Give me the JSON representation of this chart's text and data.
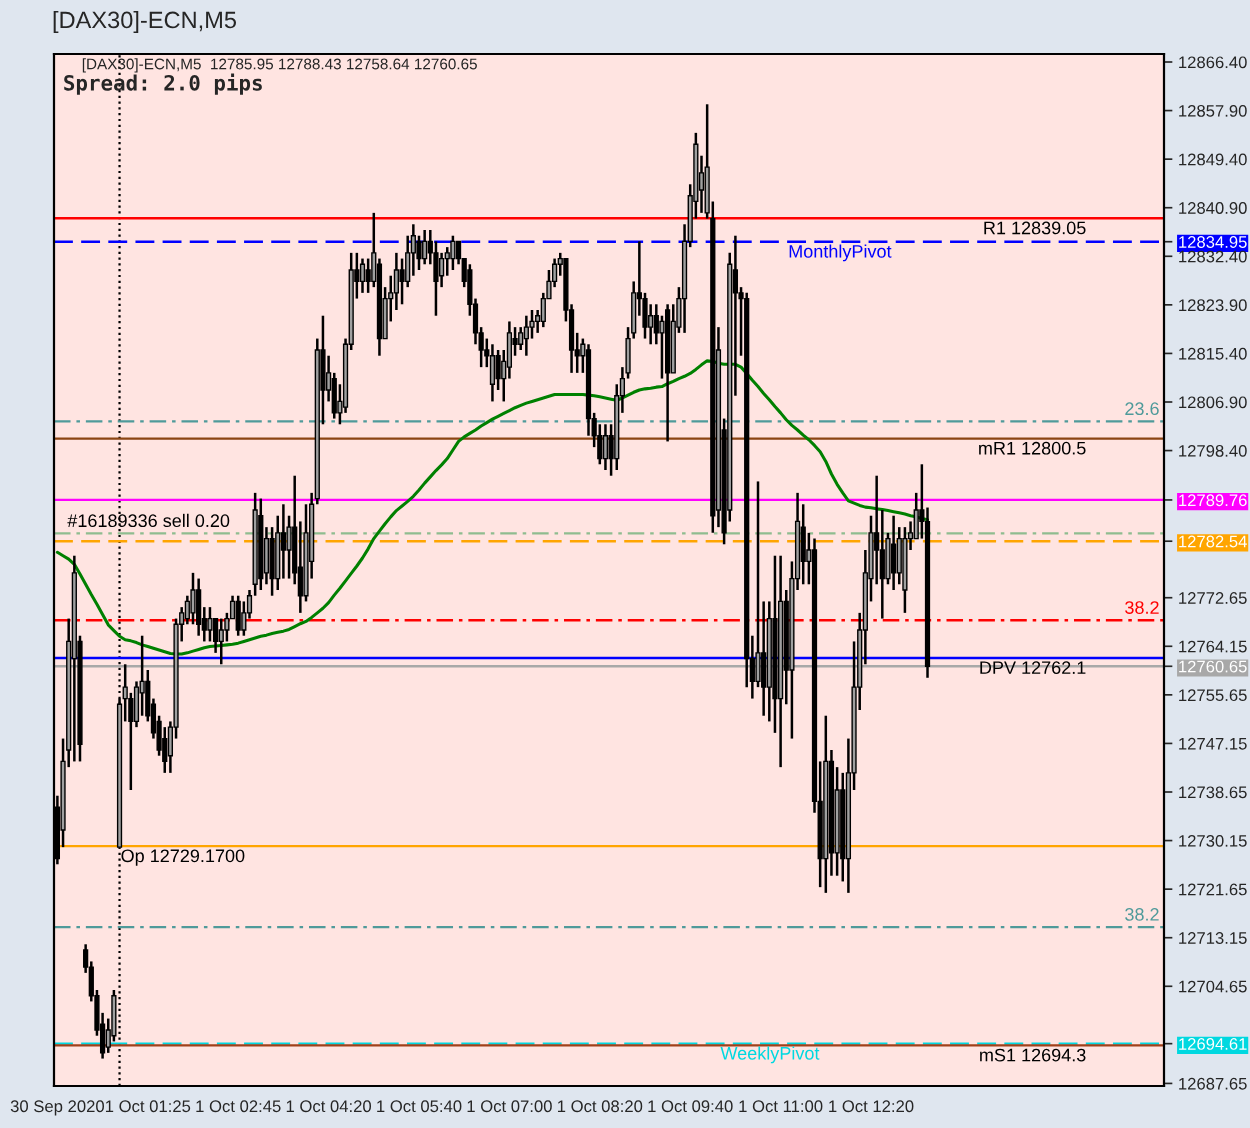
{
  "chart_data": {
    "type": "candlestick",
    "title": "[DAX30]-ECN,M5",
    "subtitle": "[DAX30]-ECN,M5  12785.95 12788.43 12758.64 12760.65",
    "annotations": [
      "Spread: 2.0 pips",
      {
        "text": "23.6",
        "y": 12803.5
      },
      {
        "text": "38.2",
        "y": 12768.7
      },
      {
        "text": "38.2",
        "y": 12715.0
      }
    ],
    "categories": [
      "30 Sep 2020",
      null,
      null,
      null,
      null,
      null,
      null,
      null,
      null,
      null,
      null,
      null,
      null,
      null,
      null,
      null,
      "1 Oct 01:25",
      null,
      null,
      null,
      null,
      null,
      null,
      null,
      null,
      null,
      null,
      null,
      null,
      null,
      null,
      null,
      "1 Oct 02:45",
      null,
      null,
      null,
      null,
      null,
      null,
      null,
      null,
      null,
      null,
      null,
      null,
      null,
      null,
      null,
      "1 Oct 04:20",
      null,
      null,
      null,
      null,
      null,
      null,
      null,
      null,
      null,
      null,
      null,
      null,
      null,
      null,
      null,
      "1 Oct 05:40",
      null,
      null,
      null,
      null,
      null,
      null,
      null,
      null,
      null,
      null,
      null,
      null,
      null,
      null,
      null,
      "1 Oct 07:00",
      null,
      null,
      null,
      null,
      null,
      null,
      null,
      null,
      null,
      null,
      null,
      null,
      null,
      null,
      null,
      "1 Oct 08:20",
      null,
      null,
      null,
      null,
      null,
      null,
      null,
      null,
      null,
      null,
      null,
      null,
      null,
      null,
      null,
      "1 Oct 09:40",
      null,
      null,
      null,
      null,
      null,
      null,
      null,
      null,
      null,
      null,
      null,
      null,
      null,
      null,
      null,
      "1 Oct 11:00",
      null,
      null,
      null,
      null,
      null,
      null,
      null,
      null,
      null,
      null,
      null,
      null,
      null,
      null,
      null,
      "1 Oct 12:20",
      null,
      null,
      null,
      null,
      null,
      null,
      null,
      null,
      null,
      null
    ],
    "color": "#000000",
    "ohlc": [
      [
        12736,
        12738,
        12726,
        12727
      ],
      [
        12732,
        12748,
        12729,
        12744
      ],
      [
        12746,
        12769,
        12743,
        12765
      ],
      [
        12762,
        12780,
        12744,
        12777
      ],
      [
        12765,
        12766,
        12744,
        12747
      ],
      [
        12711,
        12712,
        12707,
        12708
      ],
      [
        12708,
        12709,
        12702,
        12703
      ],
      [
        12703,
        12704,
        12696,
        12697
      ],
      [
        12698,
        12700,
        12692,
        12693
      ],
      [
        12694,
        12699,
        12693,
        12697
      ],
      [
        12696,
        12704,
        12695,
        12703
      ],
      [
        12729,
        12755,
        12729,
        12754
      ],
      [
        12755,
        12761,
        12751,
        12757
      ],
      [
        12755,
        12756,
        12739,
        12751
      ],
      [
        12751,
        12758,
        12750,
        12757
      ],
      [
        12756,
        12766,
        12752,
        12758
      ],
      [
        12758,
        12760,
        12751,
        12752
      ],
      [
        12754,
        12755,
        12748,
        12749
      ],
      [
        12751,
        12752,
        12745,
        12746
      ],
      [
        12748,
        12750,
        12742,
        12744
      ],
      [
        12745,
        12751,
        12742,
        12750
      ],
      [
        12750,
        12769,
        12748,
        12768
      ],
      [
        12768,
        12771,
        12765,
        12770
      ],
      [
        12769,
        12773,
        12768,
        12772
      ],
      [
        12770,
        12777,
        12768,
        12774
      ],
      [
        12774,
        12776,
        12766,
        12768
      ],
      [
        12769,
        12771,
        12765,
        12767
      ],
      [
        12767,
        12771,
        12765,
        12769
      ],
      [
        12769,
        12769,
        12763,
        12765
      ],
      [
        12765,
        12769,
        12761,
        12767
      ],
      [
        12767,
        12770,
        12765,
        12769
      ],
      [
        12769,
        12773,
        12769,
        12772
      ],
      [
        12772,
        12773,
        12766,
        12767
      ],
      [
        12767,
        12772,
        12766,
        12770
      ],
      [
        12770,
        12774,
        12769,
        12773
      ],
      [
        12775,
        12791,
        12773,
        12788
      ],
      [
        12787,
        12790,
        12774,
        12776
      ],
      [
        12777,
        12785,
        12775,
        12783
      ],
      [
        12783,
        12785,
        12773,
        12776
      ],
      [
        12776,
        12787,
        12774,
        12784
      ],
      [
        12784,
        12789,
        12776,
        12781
      ],
      [
        12781,
        12787,
        12776,
        12785
      ],
      [
        12785,
        12794,
        12775,
        12777
      ],
      [
        12778,
        12786,
        12770,
        12773
      ],
      [
        12773,
        12789,
        12772,
        12784
      ],
      [
        12779,
        12791,
        12776,
        12789
      ],
      [
        12790,
        12818,
        12789,
        12816
      ],
      [
        12816,
        12822,
        12803,
        12809
      ],
      [
        12809,
        12815,
        12807,
        12812
      ],
      [
        12811,
        12812,
        12804,
        12805
      ],
      [
        12805,
        12810,
        12803,
        12807
      ],
      [
        12806,
        12818,
        12805,
        12817
      ],
      [
        12817,
        12833,
        12816,
        12830
      ],
      [
        12830,
        12833,
        12825,
        12828
      ],
      [
        12828,
        12832,
        12826,
        12831
      ],
      [
        12830,
        12832,
        12826,
        12828
      ],
      [
        12828,
        12840,
        12827,
        12833
      ],
      [
        12831,
        12832,
        12815,
        12818
      ],
      [
        12818,
        12827,
        12818,
        12825
      ],
      [
        12825,
        12829,
        12821,
        12826
      ],
      [
        12826,
        12833,
        12823,
        12830
      ],
      [
        12830,
        12832,
        12824,
        12828
      ],
      [
        12828,
        12836,
        12827,
        12833
      ],
      [
        12833,
        12838,
        12829,
        12836
      ],
      [
        12835,
        12836,
        12830,
        12832
      ],
      [
        12832,
        12837,
        12831,
        12835
      ],
      [
        12835,
        12837,
        12831,
        12833
      ],
      [
        12833,
        12835,
        12822,
        12828
      ],
      [
        12829,
        12833,
        12827,
        12832
      ],
      [
        12832,
        12834,
        12829,
        12833
      ],
      [
        12832,
        12836,
        12830,
        12835
      ],
      [
        12835,
        12835,
        12831,
        12832
      ],
      [
        12832,
        12832,
        12827,
        12828
      ],
      [
        12830,
        12831,
        12822,
        12824
      ],
      [
        12824,
        12825,
        12817,
        12819
      ],
      [
        12819,
        12820,
        12813,
        12816
      ],
      [
        12816,
        12818,
        12813,
        12815
      ],
      [
        12810,
        12817,
        12807,
        12815
      ],
      [
        12815,
        12816,
        12809,
        12811
      ],
      [
        12811,
        12816,
        12807,
        12814
      ],
      [
        12813,
        12821,
        12811,
        12819
      ],
      [
        12818,
        12820,
        12815,
        12817
      ],
      [
        12817,
        12820,
        12816,
        12819
      ],
      [
        12818,
        12822,
        12815,
        12820
      ],
      [
        12820,
        12823,
        12818,
        12821
      ],
      [
        12821,
        12823,
        12819,
        12822
      ],
      [
        12821,
        12826,
        12820,
        12825
      ],
      [
        12825,
        12830,
        12825,
        12828
      ],
      [
        12828,
        12832,
        12827,
        12831
      ],
      [
        12831,
        12833,
        12829,
        12832
      ],
      [
        12832,
        12832,
        12821,
        12823
      ],
      [
        12823,
        12824,
        12812,
        12816
      ],
      [
        12816,
        12819,
        12812,
        12815
      ],
      [
        12815,
        12818,
        12812,
        12817
      ],
      [
        12816,
        12817,
        12801,
        12804
      ],
      [
        12804,
        12805,
        12799,
        12801
      ],
      [
        12801,
        12803,
        12796,
        12797
      ],
      [
        12797,
        12803,
        12795,
        12801
      ],
      [
        12801,
        12803,
        12794,
        12797
      ],
      [
        12797,
        12810,
        12795,
        12808
      ],
      [
        12808,
        12813,
        12805,
        12811
      ],
      [
        12812,
        12820,
        12811,
        12818
      ],
      [
        12819,
        12828,
        12818,
        12826
      ],
      [
        12826,
        12835,
        12822,
        12825
      ],
      [
        12825,
        12826,
        12818,
        12820
      ],
      [
        12820,
        12824,
        12817,
        12822
      ],
      [
        12822,
        12824,
        12817,
        12819
      ],
      [
        12819,
        12822,
        12811,
        12821
      ],
      [
        12823,
        12824,
        12800,
        12812
      ],
      [
        12812,
        12824,
        12812,
        12821
      ],
      [
        12820,
        12827,
        12819,
        12825
      ],
      [
        12825,
        12838,
        12819,
        12835
      ],
      [
        12835,
        12845,
        12834,
        12843
      ],
      [
        12842,
        12854,
        12839,
        12852
      ],
      [
        12844,
        12850,
        12840,
        12847
      ],
      [
        12840,
        12859,
        12839,
        12848
      ],
      [
        12839,
        12842,
        12784,
        12787
      ],
      [
        12788,
        12820,
        12785,
        12816
      ],
      [
        12802,
        12804,
        12782,
        12784
      ],
      [
        12788,
        12833,
        12786,
        12831
      ],
      [
        12830,
        12836,
        12808,
        12826
      ],
      [
        12826,
        12827,
        12815,
        12825
      ],
      [
        12825,
        12826,
        12757,
        12762
      ],
      [
        12762,
        12766,
        12755,
        12758
      ],
      [
        12758,
        12793,
        12757,
        12763
      ],
      [
        12763,
        12772,
        12752,
        12757
      ],
      [
        12757,
        12772,
        12751,
        12769
      ],
      [
        12769,
        12780,
        12749,
        12755
      ],
      [
        12755,
        12780,
        12743,
        12772
      ],
      [
        12772,
        12774,
        12754,
        12760
      ],
      [
        12760,
        12779,
        12748,
        12776
      ],
      [
        12776,
        12791,
        12774,
        12786
      ],
      [
        12785,
        12789,
        12775,
        12779
      ],
      [
        12779,
        12784,
        12775,
        12781
      ],
      [
        12781,
        12783,
        12735,
        12737
      ],
      [
        12737,
        12744,
        12722,
        12727
      ],
      [
        12727,
        12752,
        12721,
        12744
      ],
      [
        12744,
        12746,
        12724,
        12728
      ],
      [
        12728,
        12743,
        12724,
        12739
      ],
      [
        12739,
        12742,
        12723,
        12727
      ],
      [
        12727,
        12748,
        12721,
        12742
      ],
      [
        12742,
        12765,
        12739,
        12757
      ],
      [
        12757,
        12770,
        12753,
        12767
      ],
      [
        12767,
        12781,
        12761,
        12777
      ],
      [
        12776,
        12787,
        12772,
        12784
      ],
      [
        12784,
        12794,
        12775,
        12781
      ],
      [
        12781,
        12788,
        12769,
        12776
      ],
      [
        12776,
        12784,
        12775,
        12783
      ],
      [
        12782,
        12787,
        12774,
        12777
      ],
      [
        12777,
        12785,
        12775,
        12783
      ],
      [
        12774,
        12785,
        12770,
        12783
      ],
      [
        12783,
        12786,
        12781,
        12784
      ],
      [
        12783,
        12791,
        12783,
        12788
      ],
      [
        12788,
        12796,
        12783,
        12786
      ],
      [
        12785.95,
        12788.43,
        12758.64,
        12760.65
      ]
    ],
    "colors": [
      "#000000",
      "#a0a0a0",
      "#a0a0a0",
      "#a0a0a0",
      "#000000",
      "#000000",
      "#000000",
      "#000000",
      "#000000",
      "#a0a0a0",
      "#a0a0a0",
      "#a0a0a0",
      "#a0a0a0",
      "#000000",
      "#a0a0a0",
      "#a0a0a0",
      "#000000",
      "#000000",
      "#000000",
      "#000000",
      "#a0a0a0",
      "#a0a0a0",
      "#a0a0a0",
      "#a0a0a0",
      "#a0a0a0",
      "#000000",
      "#000000",
      "#a0a0a0",
      "#000000",
      "#a0a0a0",
      "#a0a0a0",
      "#a0a0a0",
      "#000000",
      "#a0a0a0",
      "#a0a0a0",
      "#a0a0a0",
      "#000000",
      "#a0a0a0",
      "#000000",
      "#a0a0a0",
      "#000000",
      "#a0a0a0",
      "#000000",
      "#000000",
      "#a0a0a0",
      "#a0a0a0",
      "#a0a0a0",
      "#000000",
      "#a0a0a0",
      "#000000",
      "#a0a0a0",
      "#a0a0a0",
      "#a0a0a0",
      "#000000",
      "#a0a0a0",
      "#000000",
      "#a0a0a0",
      "#000000",
      "#a0a0a0",
      "#a0a0a0",
      "#a0a0a0",
      "#000000",
      "#a0a0a0",
      "#a0a0a0",
      "#000000",
      "#a0a0a0",
      "#000000",
      "#000000",
      "#a0a0a0",
      "#a0a0a0",
      "#a0a0a0",
      "#000000",
      "#000000",
      "#000000",
      "#000000",
      "#000000",
      "#000000",
      "#a0a0a0",
      "#000000",
      "#a0a0a0",
      "#a0a0a0",
      "#000000",
      "#a0a0a0",
      "#a0a0a0",
      "#a0a0a0",
      "#a0a0a0",
      "#a0a0a0",
      "#a0a0a0",
      "#a0a0a0",
      "#a0a0a0",
      "#000000",
      "#000000",
      "#000000",
      "#a0a0a0",
      "#000000",
      "#000000",
      "#000000",
      "#a0a0a0",
      "#000000",
      "#a0a0a0",
      "#a0a0a0",
      "#a0a0a0",
      "#a0a0a0",
      "#000000",
      "#000000",
      "#a0a0a0",
      "#000000",
      "#a0a0a0",
      "#000000",
      "#a0a0a0",
      "#a0a0a0",
      "#a0a0a0",
      "#a0a0a0",
      "#a0a0a0",
      "#a0a0a0",
      "#a0a0a0",
      "#000000",
      "#a0a0a0",
      "#000000",
      "#a0a0a0",
      "#000000",
      "#000000",
      "#000000",
      "#000000",
      "#a0a0a0",
      "#000000",
      "#a0a0a0",
      "#000000",
      "#a0a0a0",
      "#000000",
      "#a0a0a0",
      "#a0a0a0",
      "#000000",
      "#a0a0a0",
      "#000000",
      "#000000",
      "#a0a0a0",
      "#000000",
      "#a0a0a0",
      "#000000",
      "#a0a0a0",
      "#a0a0a0",
      "#a0a0a0",
      "#a0a0a0",
      "#a0a0a0",
      "#000000",
      "#000000",
      "#a0a0a0",
      "#000000",
      "#a0a0a0",
      "#a0a0a0",
      "#a0a0a0",
      "#a0a0a0",
      "#000000",
      "#000000"
    ],
    "series": [
      {
        "type": "line",
        "color": "#008000",
        "values": [
          12780.6,
          12780.0,
          12779.4,
          12778.5,
          12776.8,
          12775.0,
          12773.2,
          12771.5,
          12769.7,
          12767.9,
          12766.9,
          12765.9,
          12765.3,
          12765.1,
          12764.8,
          12764.4,
          12764.1,
          12763.8,
          12763.5,
          12763.2,
          12762.9,
          12762.8,
          12762.8,
          12763.0,
          12763.3,
          12763.6,
          12763.9,
          12764.1,
          12764.2,
          12764.3,
          12764.4,
          12764.5,
          12764.7,
          12765.0,
          12765.3,
          12765.6,
          12765.9,
          12766.1,
          12766.4,
          12766.6,
          12766.8,
          12767.1,
          12767.6,
          12768.1,
          12768.5,
          12769.2,
          12770.0,
          12770.8,
          12771.8,
          12773.1,
          12774.3,
          12775.6,
          12776.9,
          12778.2,
          12779.6,
          12781.2,
          12783.0,
          12784.3,
          12785.6,
          12786.8,
          12787.9,
          12788.7,
          12789.5,
          12790.4,
          12791.5,
          12792.7,
          12793.8,
          12794.9,
          12795.9,
          12797.0,
          12798.5,
          12800.0,
          12800.8,
          12801.4,
          12802.0,
          12802.7,
          12803.3,
          12803.9,
          12804.4,
          12804.9,
          12805.4,
          12805.9,
          12806.3,
          12806.7,
          12807.0,
          12807.3,
          12807.6,
          12807.9,
          12808.2,
          12808.2,
          12808.2,
          12808.2,
          12808.2,
          12808.2,
          12808.1,
          12808.0,
          12807.8,
          12807.6,
          12807.4,
          12807.2,
          12807.6,
          12808.1,
          12808.6,
          12809.0,
          12809.2,
          12809.3,
          12809.5,
          12809.6,
          12810.1,
          12810.5,
          12811.0,
          12811.4,
          12811.9,
          12812.6,
          12813.4,
          12814.1,
          12814.0,
          12813.7,
          12813.5,
          12813.5,
          12813.5,
          12813.0,
          12811.9,
          12810.7,
          12809.6,
          12808.4,
          12807.3,
          12806.1,
          12805.0,
          12803.8,
          12802.8,
          12802.0,
          12801.1,
          12800.3,
          12799.3,
          12798.2,
          12796.5,
          12794.3,
          12792.5,
          12791.0,
          12789.6,
          12789.2,
          12788.8,
          12788.5,
          12788.4,
          12788.2,
          12788.1,
          12787.9,
          12787.7,
          12787.5,
          12787.3,
          12787.0,
          12786.8,
          12786.5,
          12786.3
        ]
      }
    ],
    "ylim": [
      12687.2,
      12867.8
    ],
    "yticks": [
      {
        "value": 12866.4,
        "label": "12866.40"
      },
      {
        "value": 12857.9,
        "label": "12857.90"
      },
      {
        "value": 12849.4,
        "label": "12849.40"
      },
      {
        "value": 12840.9,
        "label": "12840.90"
      },
      12834.95,
      {
        "value": 12832.4,
        "label": "12832.40"
      },
      {
        "value": 12823.9,
        "label": "12823.90"
      },
      {
        "value": 12815.4,
        "label": "12815.40"
      },
      {
        "value": 12806.9,
        "label": "12806.90"
      },
      {
        "value": 12798.4,
        "label": "12798.40"
      },
      12789.76,
      12782.54,
      12772.65,
      12764.15,
      12760.65,
      12755.65,
      12747.15,
      12738.65,
      12730.15,
      12721.65,
      12713.15,
      12704.65,
      12694.61,
      12687.65
    ],
    "ref_lines": [
      {
        "axis": "y",
        "value": 12839.05,
        "label": "R1 12839.05",
        "color": "#ff0000",
        "line_style": "solid"
      },
      {
        "axis": "y",
        "value": 12834.95,
        "label": "MonthlyPivot",
        "color": "#0000ff",
        "line_style": "dashed"
      },
      {
        "axis": "y",
        "value": 12803.5,
        "color": "#4f9a9a",
        "line_style": "dashdot"
      },
      {
        "axis": "y",
        "value": 12800.5,
        "label": "mR1 12800.5",
        "color": "#8b4513",
        "line_style": "solid"
      },
      {
        "axis": "y",
        "value": 12789.76,
        "color": "#ff00ff",
        "line_style": "solid"
      },
      {
        "axis": "y",
        "value": 12783.9,
        "label": "#16189336 sell 0.20",
        "color": "#8fbc8f",
        "line_style": "dashdot"
      },
      {
        "axis": "y",
        "value": 12782.54,
        "color": "#ffa500",
        "line_style": "dashed"
      },
      {
        "axis": "y",
        "value": 12768.7,
        "color": "#ff0000",
        "line_style": "dashdot"
      },
      {
        "axis": "y",
        "value": 12762.1,
        "label": "DPV 12762.1",
        "color": "#0000ff",
        "line_style": "solid"
      },
      {
        "axis": "y",
        "value": 12760.65,
        "color": "#a8a8a8",
        "line_style": "solid"
      },
      {
        "axis": "y",
        "value": 12729.17,
        "label": "Op 12729.1700",
        "color": "#ffa500",
        "line_style": "solid"
      },
      {
        "axis": "y",
        "value": 12715.0,
        "color": "#4f9a9a",
        "line_style": "dashdot"
      },
      {
        "axis": "y",
        "value": 12694.61,
        "label": "WeeklyPivot",
        "color": "#00d8e0",
        "line_style": "dashed"
      },
      {
        "axis": "y",
        "value": 12694.3,
        "label": "mS1 12694.3",
        "color": "#a0401a",
        "line_style": "solid"
      }
    ]
  }
}
